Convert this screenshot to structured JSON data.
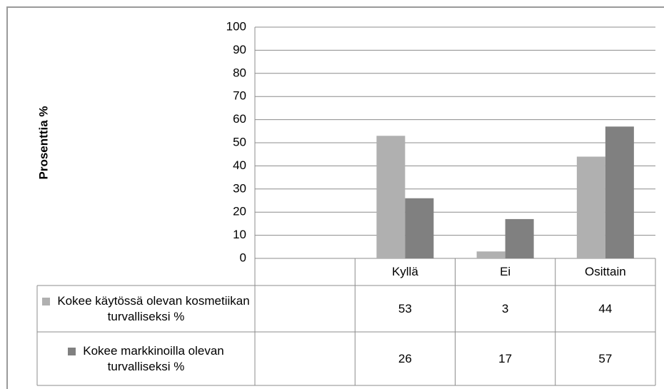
{
  "chart_data": {
    "type": "bar",
    "y_label": "Prosenttia %",
    "categories": [
      null,
      "Kyllä",
      "Ei",
      "Osittain"
    ],
    "series": [
      {
        "name": "Kokee käytössä olevan kosmetiikan turvalliseksi %",
        "color": "#b0b0b0",
        "values": [
          null,
          53,
          3,
          44
        ]
      },
      {
        "name": "Kokee markkinoilla olevan turvalliseksi %",
        "color": "#808080",
        "values": [
          null,
          26,
          17,
          57
        ]
      }
    ],
    "ylim": [
      0,
      100
    ],
    "yticks": [
      0,
      10,
      20,
      30,
      40,
      50,
      60,
      70,
      80,
      90,
      100
    ],
    "grid": true
  }
}
